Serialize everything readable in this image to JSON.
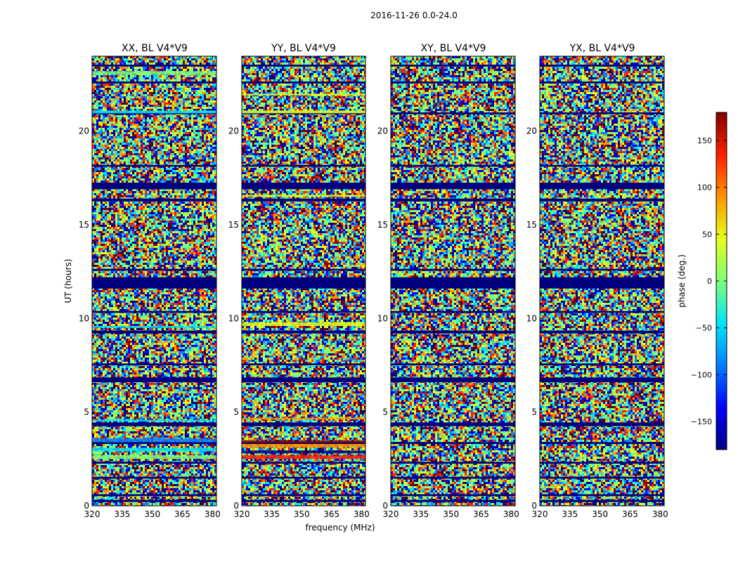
{
  "figure": {
    "suptitle": "2016-11-26 0.0-24.0"
  },
  "chart_data": {
    "type": "heatmap",
    "title": "2016-11-26 0.0-24.0",
    "xlabel": "frequency (MHz)",
    "ylabel": "UT (hours)",
    "xlim": [
      320,
      382
    ],
    "ylim": [
      0,
      24
    ],
    "x_ticks": [
      320,
      335,
      350,
      365,
      380
    ],
    "y_ticks": [
      0,
      5,
      10,
      15,
      20
    ],
    "panels": [
      {
        "title": "XX, BL V4*V9",
        "polarization": "XX"
      },
      {
        "title": "YY, BL V4*V9",
        "polarization": "YY"
      },
      {
        "title": "XY, BL V4*V9",
        "polarization": "XY"
      },
      {
        "title": "YX, BL V4*V9",
        "polarization": "YX"
      }
    ],
    "colorbar": {
      "label": "phase (deg.)",
      "range": [
        -180,
        180
      ],
      "ticks": [
        150,
        100,
        50,
        0,
        -50,
        -100,
        -150
      ],
      "tick_labels": [
        "150",
        "100",
        "50",
        "0",
        "−50",
        "−100",
        "−150"
      ]
    },
    "colormap": [
      "#00007f",
      "#0000ff",
      "#007fff",
      "#00e5f7",
      "#7dff7a",
      "#e5ff17",
      "#ff9400",
      "#ff1d00",
      "#7f0000"
    ],
    "noise_palette": [
      "#00007f",
      "#0000ff",
      "#007fff",
      "#00e5f7",
      "#7dff7a",
      "#7dff7a",
      "#e5ff17",
      "#ff9400",
      "#ff1d00",
      "#7f0000"
    ],
    "flagged_rows": [
      {
        "start": 0.2,
        "end": 0.32,
        "color": "#00007f"
      },
      {
        "start": 0.52,
        "end": 0.62,
        "color": "#00007f"
      },
      {
        "start": 1.45,
        "end": 1.55,
        "color": "#00007f"
      },
      {
        "start": 2.25,
        "end": 2.35,
        "color": "#00007f"
      },
      {
        "start": 3.3,
        "end": 3.4,
        "color": "#00007f"
      },
      {
        "start": 4.25,
        "end": 4.45,
        "color": "#00007f"
      },
      {
        "start": 6.6,
        "end": 6.85,
        "color": "#00007f"
      },
      {
        "start": 7.5,
        "end": 7.6,
        "color": "#00007f"
      },
      {
        "start": 9.2,
        "end": 9.35,
        "color": "#00007f"
      },
      {
        "start": 10.3,
        "end": 10.4,
        "color": "#00007f"
      },
      {
        "start": 11.6,
        "end": 12.2,
        "color": "#00007f"
      },
      {
        "start": 12.55,
        "end": 12.65,
        "color": "#00007f"
      },
      {
        "start": 16.25,
        "end": 16.4,
        "color": "#00007f"
      },
      {
        "start": 16.9,
        "end": 17.25,
        "color": "#00007f"
      },
      {
        "start": 18.1,
        "end": 18.2,
        "color": "#00007f"
      },
      {
        "start": 20.9,
        "end": 21.0,
        "color": "#00007f"
      },
      {
        "start": 22.55,
        "end": 22.65,
        "color": "#00007f"
      },
      {
        "start": 23.45,
        "end": 23.55,
        "color": "#00007f"
      }
    ],
    "panel_bands": [
      [
        {
          "start": 2.5,
          "end": 2.7,
          "color": "#7dff7a"
        },
        {
          "start": 2.9,
          "end": 3.1,
          "color": "#00e5f7"
        },
        {
          "start": 3.4,
          "end": 3.6,
          "color": "#007fff"
        },
        {
          "start": 4.5,
          "end": 4.6,
          "color": "#00e5f7"
        },
        {
          "start": 9.5,
          "end": 9.6,
          "color": "#00e5f7"
        },
        {
          "start": 20.95,
          "end": 21.1,
          "color": "#00e5f7"
        },
        {
          "start": 23.0,
          "end": 23.2,
          "color": "#7dff7a"
        }
      ],
      [
        {
          "start": 2.5,
          "end": 2.7,
          "color": "#ff1d00"
        },
        {
          "start": 2.8,
          "end": 2.95,
          "color": "#00007f"
        },
        {
          "start": 3.1,
          "end": 3.3,
          "color": "#ff9400"
        },
        {
          "start": 3.35,
          "end": 3.5,
          "color": "#7f0000"
        },
        {
          "start": 4.6,
          "end": 4.7,
          "color": "#ff9400"
        },
        {
          "start": 9.6,
          "end": 9.8,
          "color": "#e5ff17"
        },
        {
          "start": 16.5,
          "end": 16.6,
          "color": "#e5ff17"
        },
        {
          "start": 20.95,
          "end": 21.1,
          "color": "#e5ff17"
        },
        {
          "start": 21.9,
          "end": 22.0,
          "color": "#e5ff17"
        }
      ],
      [],
      []
    ]
  }
}
